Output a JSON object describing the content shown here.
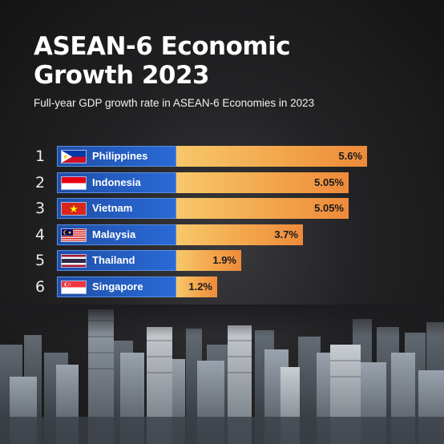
{
  "header": {
    "title_line1": "ASEAN-6 Economic",
    "title_line2": "Growth 2023",
    "subtitle": "Full-year GDP growth rate in ASEAN-6 Economies in 2023"
  },
  "colors": {
    "label_box": "#2a6ad6",
    "bar_start": "#f7c86a",
    "bar_end": "#ee8a3a"
  },
  "chart_data": {
    "type": "bar",
    "orientation": "horizontal",
    "title": "ASEAN-6 Economic Growth 2023",
    "subtitle": "Full-year GDP growth rate in ASEAN-6 Economies in 2023",
    "xlim": [
      0,
      6.2
    ],
    "grid": false,
    "unit": "%",
    "categories": [
      "Philippines",
      "Indonesia",
      "Vietnam",
      "Malaysia",
      "Thailand",
      "Singapore"
    ],
    "values": [
      5.6,
      5.05,
      5.05,
      3.7,
      1.9,
      1.2
    ],
    "rows": [
      {
        "rank": "1",
        "country": "Philippines",
        "value": 5.6,
        "label": "5.6%",
        "flag": "philippines-flag-icon"
      },
      {
        "rank": "2",
        "country": "Indonesia",
        "value": 5.05,
        "label": "5.05%",
        "flag": "indonesia-flag-icon"
      },
      {
        "rank": "3",
        "country": "Vietnam",
        "value": 5.05,
        "label": "5.05%",
        "flag": "vietnam-flag-icon"
      },
      {
        "rank": "4",
        "country": "Malaysia",
        "value": 3.7,
        "label": "3.7%",
        "flag": "malaysia-flag-icon"
      },
      {
        "rank": "5",
        "country": "Thailand",
        "value": 1.9,
        "label": "1.9%",
        "flag": "thailand-flag-icon"
      },
      {
        "rank": "6",
        "country": "Singapore",
        "value": 1.2,
        "label": "1.2%",
        "flag": "singapore-flag-icon"
      }
    ]
  }
}
